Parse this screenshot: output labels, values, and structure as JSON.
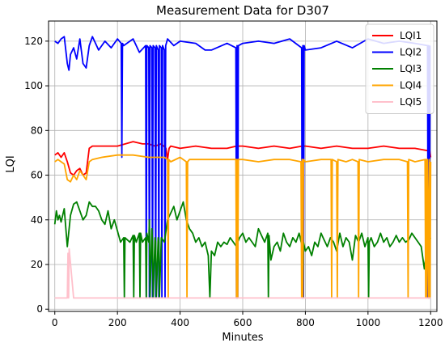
{
  "chart_data": {
    "type": "line",
    "title": "Measurement Data for D307",
    "xlabel": "Minutes",
    "ylabel": "LQI",
    "xlim": [
      -20,
      1220
    ],
    "ylim": [
      -1,
      129
    ],
    "xticks": [
      0,
      200,
      400,
      600,
      800,
      1000,
      1200
    ],
    "yticks": [
      0,
      20,
      40,
      60,
      80,
      100,
      120
    ],
    "grid": true,
    "legend": "top-right",
    "series": [
      {
        "name": "LQI1",
        "color": "#ff0000",
        "x": [
          0,
          10,
          20,
          30,
          40,
          50,
          60,
          70,
          80,
          90,
          100,
          110,
          120,
          150,
          200,
          250,
          280,
          300,
          320,
          340,
          355,
          360,
          365,
          370,
          400,
          450,
          500,
          550,
          580,
          600,
          650,
          700,
          750,
          790,
          800,
          850,
          900,
          950,
          1000,
          1050,
          1100,
          1150,
          1190,
          1195,
          1200
        ],
        "y": [
          69,
          70,
          68,
          70,
          66,
          61,
          60,
          62,
          63,
          60,
          61,
          72,
          73,
          73,
          73,
          75,
          74,
          74,
          73,
          74,
          72,
          67,
          72,
          73,
          72,
          73,
          72,
          72,
          73,
          73,
          72,
          73,
          72,
          73,
          73,
          72,
          73,
          72,
          72,
          73,
          72,
          72,
          71,
          73,
          68
        ]
      },
      {
        "name": "LQI2",
        "color": "#0000ff",
        "x": [
          0,
          10,
          20,
          30,
          40,
          45,
          50,
          60,
          70,
          80,
          90,
          100,
          110,
          120,
          140,
          160,
          180,
          200,
          212,
          214,
          216,
          220,
          250,
          270,
          290,
          292,
          294,
          300,
          302,
          304,
          310,
          312,
          314,
          320,
          322,
          324,
          330,
          332,
          334,
          340,
          342,
          344,
          350,
          352,
          354,
          360,
          380,
          400,
          450,
          480,
          500,
          550,
          578,
          580,
          582,
          584,
          586,
          600,
          650,
          700,
          750,
          788,
          790,
          792,
          794,
          796,
          800,
          850,
          900,
          950,
          1000,
          1050,
          1100,
          1150,
          1190,
          1192,
          1194,
          1196,
          1198
        ],
        "y": [
          120,
          119,
          121,
          122,
          110,
          107,
          114,
          117,
          112,
          121,
          110,
          108,
          118,
          122,
          116,
          120,
          117,
          121,
          119,
          68,
          119,
          118,
          121,
          115,
          118,
          5,
          118,
          117,
          5,
          118,
          117,
          5,
          118,
          117,
          5,
          118,
          116,
          5,
          118,
          117,
          5,
          118,
          116,
          5,
          118,
          121,
          118,
          120,
          119,
          116,
          116,
          119,
          117,
          5,
          118,
          5,
          118,
          119,
          120,
          119,
          121,
          117,
          5,
          118,
          5,
          118,
          116,
          117,
          120,
          117,
          121,
          119,
          120,
          119,
          118,
          5,
          118,
          5,
          118
        ]
      },
      {
        "name": "LQI3",
        "color": "#008000",
        "x": [
          0,
          5,
          10,
          15,
          20,
          30,
          40,
          50,
          60,
          70,
          80,
          90,
          100,
          110,
          120,
          130,
          140,
          150,
          160,
          170,
          180,
          190,
          200,
          210,
          220,
          222,
          224,
          240,
          250,
          252,
          254,
          260,
          270,
          272,
          274,
          280,
          290,
          292,
          294,
          300,
          302,
          304,
          310,
          312,
          314,
          320,
          322,
          324,
          330,
          332,
          334,
          340,
          350,
          360,
          370,
          380,
          390,
          400,
          410,
          420,
          430,
          440,
          450,
          460,
          470,
          480,
          490,
          495,
          500,
          510,
          520,
          530,
          540,
          550,
          560,
          570,
          580,
          582,
          584,
          590,
          600,
          610,
          620,
          630,
          640,
          650,
          660,
          670,
          680,
          682,
          684,
          690,
          700,
          710,
          720,
          730,
          740,
          750,
          760,
          770,
          780,
          790,
          792,
          794,
          800,
          810,
          820,
          830,
          840,
          850,
          860,
          870,
          880,
          890,
          900,
          910,
          920,
          930,
          940,
          950,
          960,
          970,
          980,
          990,
          1000,
          1002,
          1004,
          1010,
          1020,
          1030,
          1040,
          1050,
          1060,
          1070,
          1080,
          1090,
          1100,
          1110,
          1120,
          1130,
          1140,
          1150,
          1160,
          1170,
          1180,
          1190,
          1200
        ],
        "y": [
          38,
          44,
          40,
          42,
          39,
          45,
          28,
          42,
          47,
          48,
          44,
          40,
          42,
          48,
          46,
          46,
          44,
          40,
          38,
          44,
          36,
          40,
          35,
          30,
          32,
          5,
          32,
          30,
          33,
          5,
          33,
          30,
          34,
          5,
          34,
          30,
          32,
          5,
          34,
          30,
          40,
          5,
          36,
          30,
          5,
          32,
          30,
          5,
          32,
          30,
          5,
          32,
          30,
          40,
          43,
          46,
          40,
          44,
          48,
          40,
          36,
          34,
          30,
          32,
          28,
          30,
          24,
          5,
          26,
          24,
          30,
          28,
          30,
          29,
          32,
          30,
          28,
          5,
          30,
          32,
          34,
          30,
          32,
          30,
          28,
          36,
          33,
          30,
          34,
          5,
          33,
          22,
          28,
          30,
          26,
          34,
          30,
          28,
          32,
          30,
          34,
          28,
          5,
          30,
          26,
          28,
          24,
          30,
          28,
          34,
          31,
          28,
          32,
          30,
          26,
          34,
          28,
          32,
          30,
          22,
          33,
          30,
          34,
          28,
          32,
          5,
          30,
          32,
          28,
          30,
          34,
          30,
          32,
          28,
          30,
          33,
          30,
          32,
          30,
          31,
          34,
          32,
          30,
          28,
          18,
          30,
          32
        ]
      },
      {
        "name": "LQI4",
        "color": "#ffa500",
        "x": [
          0,
          10,
          20,
          30,
          40,
          50,
          60,
          70,
          80,
          90,
          100,
          110,
          120,
          150,
          200,
          250,
          300,
          350,
          360,
          362,
          364,
          370,
          400,
          420,
          422,
          424,
          430,
          450,
          500,
          550,
          578,
          580,
          582,
          584,
          586,
          600,
          650,
          700,
          750,
          786,
          788,
          790,
          792,
          794,
          800,
          850,
          882,
          884,
          886,
          900,
          902,
          904,
          930,
          950,
          968,
          970,
          972,
          1000,
          1050,
          1100,
          1126,
          1128,
          1130,
          1150,
          1182,
          1184,
          1186,
          1188,
          1190,
          1194,
          1196,
          1198,
          1200
        ],
        "y": [
          66,
          67,
          66,
          65,
          58,
          57,
          60,
          58,
          62,
          60,
          58,
          66,
          67,
          68,
          69,
          69,
          68,
          68,
          67,
          5,
          67,
          66,
          68,
          66,
          5,
          66,
          67,
          67,
          67,
          67,
          67,
          5,
          67,
          5,
          67,
          67,
          66,
          67,
          67,
          66,
          5,
          67,
          5,
          67,
          66,
          67,
          67,
          5,
          67,
          66,
          5,
          67,
          66,
          67,
          66,
          5,
          67,
          66,
          67,
          67,
          66,
          5,
          67,
          66,
          67,
          5,
          67,
          5,
          67,
          5,
          67,
          5,
          66
        ]
      },
      {
        "name": "LQI5",
        "color": "#ffc0cb",
        "x": [
          0,
          40,
          42,
          44,
          46,
          60,
          200,
          400,
          600,
          800,
          1000,
          1200
        ],
        "y": [
          5,
          5,
          25,
          5,
          27,
          5,
          5,
          5,
          5,
          5,
          5,
          5
        ]
      }
    ]
  }
}
